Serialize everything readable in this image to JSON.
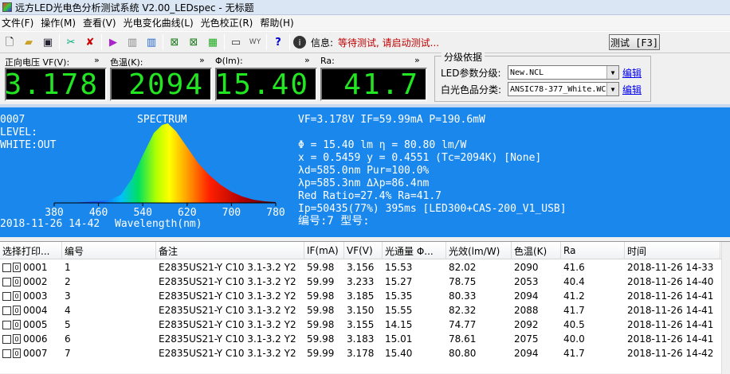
{
  "window": {
    "title": "远方LED光电色分析测试系统 V2.00_LEDspec - 无标题"
  },
  "menu": [
    "文件(F)",
    "操作(M)",
    "查看(V)",
    "光电变化曲线(L)",
    "光色校正(R)",
    "帮助(H)"
  ],
  "toolbar": {
    "info_label": "信息:",
    "info_message": "等待测试, 请启动测试...",
    "test_button": "测试 [F3]"
  },
  "readouts": [
    {
      "label": "正向电压 VF(V):",
      "value": "3.178"
    },
    {
      "label": "色温(K):",
      "value": "2094"
    },
    {
      "label": "Φ(lm):",
      "value": "15.40"
    },
    {
      "label": "Ra:",
      "value": "41.7"
    }
  ],
  "grading": {
    "title": "分级依据",
    "param_label": "LED参数分级:",
    "param_value": "New.NCL",
    "white_label": "白光色品分类:",
    "white_value": "ANSIC78-377_White.WC",
    "edit_label": "编辑"
  },
  "spectrum": {
    "left_lines": [
      "0007",
      "LEVEL:",
      "WHITE:OUT"
    ],
    "title": "SPECTRUM",
    "x_ticks": [
      "380",
      "460",
      "540",
      "620",
      "700",
      "780"
    ],
    "footer": "2018-11-26 14-42",
    "xlabel": "Wavelength(nm)",
    "right_lines": [
      "VF=3.178V  IF=59.99mA  P=190.6mW",
      "",
      "Φ = 15.40 lm    η  = 80.80 lm/W",
      "x = 0.5459 y = 0.4551 (Tc=2094K) [None]",
      "λd=585.0nm Pur=100.0%",
      "λp=585.3nm Δλp=86.4nm",
      "Red Ratio=27.4%  Ra=41.7",
      "Ip=50435(77%) 395ms  [LED300+CAS-200_V1_USB]",
      "编号:7 型号:"
    ]
  },
  "chart_data": {
    "type": "area",
    "title": "SPECTRUM",
    "xlabel": "Wavelength(nm)",
    "ylabel": "",
    "xlim": [
      380,
      780
    ],
    "x": [
      380,
      420,
      460,
      480,
      500,
      520,
      540,
      560,
      575,
      585,
      600,
      620,
      640,
      660,
      680,
      700,
      720,
      740,
      760,
      780
    ],
    "y": [
      0.0,
      0.005,
      0.02,
      0.04,
      0.1,
      0.3,
      0.6,
      0.88,
      0.98,
      1.0,
      0.9,
      0.7,
      0.5,
      0.35,
      0.23,
      0.14,
      0.08,
      0.04,
      0.02,
      0.01
    ]
  },
  "table": {
    "columns": [
      "选择打印...",
      "编号",
      "备注",
      "IF(mA)",
      "VF(V)",
      "光通量  Φ...",
      "光效(lm/W)",
      "色温(K)",
      "Ra",
      "时间"
    ],
    "rows": [
      [
        "0001",
        "1",
        "E2835US21-Y  C10  3.1-3.2  Y2",
        "59.98",
        "3.156",
        "15.53",
        "82.02",
        "2090",
        "41.6",
        "2018-11-26 14-33"
      ],
      [
        "0002",
        "2",
        "E2835US21-Y  C10  3.1-3.2  Y2",
        "59.99",
        "3.233",
        "15.27",
        "78.75",
        "2053",
        "40.4",
        "2018-11-26 14-40"
      ],
      [
        "0003",
        "3",
        "E2835US21-Y  C10  3.1-3.2  Y2",
        "59.98",
        "3.185",
        "15.35",
        "80.33",
        "2094",
        "41.2",
        "2018-11-26 14-41"
      ],
      [
        "0004",
        "4",
        "E2835US21-Y  C10  3.1-3.2  Y2",
        "59.98",
        "3.150",
        "15.55",
        "82.32",
        "2088",
        "41.7",
        "2018-11-26 14-41"
      ],
      [
        "0005",
        "5",
        "E2835US21-Y  C10  3.1-3.2  Y2",
        "59.98",
        "3.155",
        "14.15",
        "74.77",
        "2092",
        "40.5",
        "2018-11-26 14-41"
      ],
      [
        "0006",
        "6",
        "E2835US21-Y  C10  3.1-3.2  Y2",
        "59.98",
        "3.183",
        "15.01",
        "78.61",
        "2075",
        "40.0",
        "2018-11-26 14-41"
      ],
      [
        "0007",
        "7",
        "E2835US21-Y  C10  3.1-3.2  Y2",
        "59.99",
        "3.178",
        "15.40",
        "80.80",
        "2094",
        "41.7",
        "2018-11-26 14-42"
      ]
    ]
  }
}
